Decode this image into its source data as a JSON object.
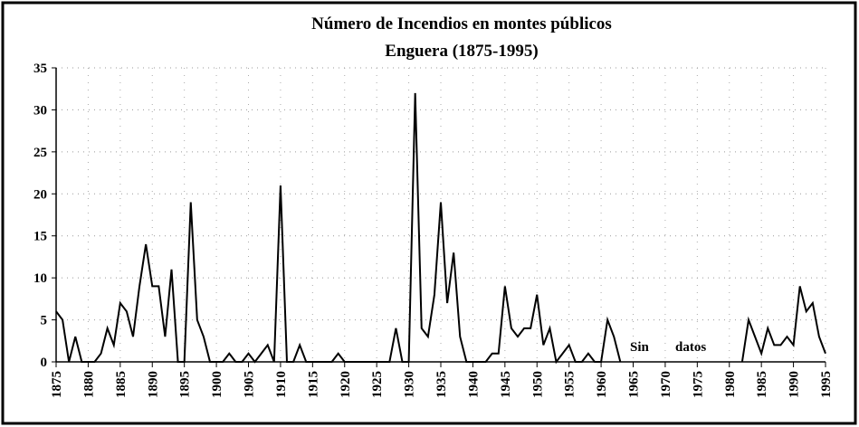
{
  "chart_data": {
    "type": "line",
    "title": "Número de Incendios en montes públicos",
    "subtitle": "Enguera (1875-1995)",
    "annotations": [
      "Sin",
      "datos"
    ],
    "x": [
      1875,
      1876,
      1877,
      1878,
      1879,
      1880,
      1881,
      1882,
      1883,
      1884,
      1885,
      1886,
      1887,
      1888,
      1889,
      1890,
      1891,
      1892,
      1893,
      1894,
      1895,
      1896,
      1897,
      1898,
      1899,
      1900,
      1901,
      1902,
      1903,
      1904,
      1905,
      1906,
      1907,
      1908,
      1909,
      1910,
      1911,
      1912,
      1913,
      1914,
      1915,
      1916,
      1917,
      1918,
      1919,
      1920,
      1921,
      1922,
      1923,
      1924,
      1925,
      1926,
      1927,
      1928,
      1929,
      1930,
      1931,
      1932,
      1933,
      1934,
      1935,
      1936,
      1937,
      1938,
      1939,
      1940,
      1941,
      1942,
      1943,
      1944,
      1945,
      1946,
      1947,
      1948,
      1949,
      1950,
      1951,
      1952,
      1953,
      1954,
      1955,
      1956,
      1957,
      1958,
      1959,
      1960,
      1961,
      1962,
      1963,
      1964,
      1965,
      1966,
      1967,
      1968,
      1969,
      1970,
      1971,
      1972,
      1973,
      1974,
      1975,
      1976,
      1977,
      1978,
      1979,
      1980,
      1981,
      1982,
      1983,
      1984,
      1985,
      1986,
      1987,
      1988,
      1989,
      1990,
      1991,
      1992,
      1993,
      1994,
      1995
    ],
    "series": [
      {
        "name": "Incendios",
        "color": "#000000",
        "values": [
          6,
          5,
          0,
          3,
          0,
          0,
          0,
          1,
          4,
          2,
          7,
          6,
          3,
          9,
          14,
          9,
          9,
          3,
          11,
          0,
          0,
          19,
          5,
          3,
          0,
          0,
          0,
          1,
          0,
          0,
          1,
          0,
          1,
          2,
          0,
          21,
          0,
          0,
          2,
          0,
          0,
          0,
          0,
          0,
          1,
          0,
          0,
          0,
          0,
          0,
          0,
          0,
          0,
          4,
          0,
          0,
          32,
          4,
          3,
          8,
          19,
          7,
          13,
          3,
          0,
          0,
          0,
          0,
          1,
          1,
          9,
          4,
          3,
          4,
          4,
          8,
          2,
          4,
          0,
          1,
          2,
          0,
          0,
          1,
          0,
          0,
          5,
          3,
          0,
          null,
          null,
          null,
          null,
          null,
          null,
          null,
          null,
          null,
          null,
          null,
          null,
          null,
          null,
          null,
          null,
          null,
          null,
          0,
          5,
          3,
          1,
          4,
          2,
          2,
          3,
          2,
          9,
          6,
          7,
          3,
          1
        ]
      }
    ],
    "xlim": [
      1875,
      1995
    ],
    "xticks": [
      1875,
      1880,
      1885,
      1890,
      1895,
      1900,
      1905,
      1910,
      1915,
      1920,
      1925,
      1930,
      1935,
      1940,
      1945,
      1950,
      1955,
      1960,
      1965,
      1970,
      1975,
      1980,
      1985,
      1990,
      1995
    ],
    "ylim": [
      0,
      35
    ],
    "yticks": [
      0,
      5,
      10,
      15,
      20,
      25,
      30,
      35
    ],
    "grid": true
  }
}
